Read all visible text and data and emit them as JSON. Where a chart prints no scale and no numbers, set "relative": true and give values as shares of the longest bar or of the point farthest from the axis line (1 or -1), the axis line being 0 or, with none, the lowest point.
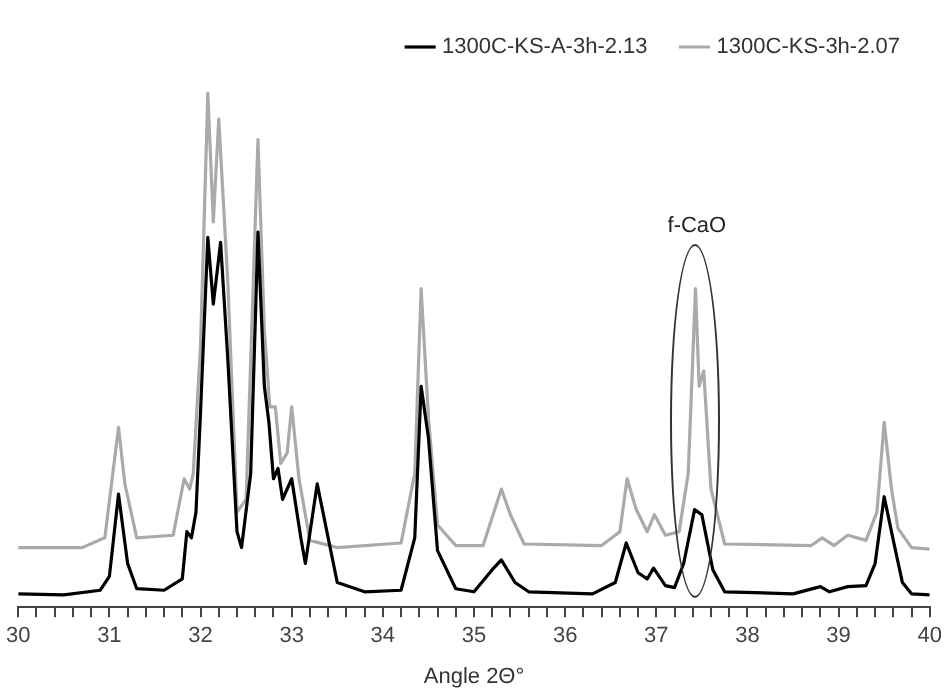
{
  "chart_data": {
    "type": "line",
    "relative": true,
    "xlabel": "Angle 2Θ°",
    "legend": "top",
    "grid": false,
    "marker": "none",
    "line_style": "solid",
    "xlim": [
      30,
      40
    ],
    "xticks": [
      30,
      {
        "value": 30.2,
        "label": null
      },
      {
        "value": 30.4,
        "label": null
      },
      {
        "value": 30.6,
        "label": null
      },
      {
        "value": 30.8,
        "label": null
      },
      31,
      {
        "value": 31.2,
        "label": null
      },
      {
        "value": 31.4,
        "label": null
      },
      {
        "value": 31.6,
        "label": null
      },
      {
        "value": 31.8,
        "label": null
      },
      32,
      {
        "value": 32.2,
        "label": null
      },
      {
        "value": 32.4,
        "label": null
      },
      {
        "value": 32.6,
        "label": null
      },
      {
        "value": 32.8,
        "label": null
      },
      33,
      {
        "value": 33.2,
        "label": null
      },
      {
        "value": 33.4,
        "label": null
      },
      {
        "value": 33.6,
        "label": null
      },
      {
        "value": 33.8,
        "label": null
      },
      34,
      {
        "value": 34.2,
        "label": null
      },
      {
        "value": 34.4,
        "label": null
      },
      {
        "value": 34.6,
        "label": null
      },
      {
        "value": 34.8,
        "label": null
      },
      35,
      {
        "value": 35.2,
        "label": null
      },
      {
        "value": 35.4,
        "label": null
      },
      {
        "value": 35.6,
        "label": null
      },
      {
        "value": 35.8,
        "label": null
      },
      36,
      {
        "value": 36.2,
        "label": null
      },
      {
        "value": 36.4,
        "label": null
      },
      {
        "value": 36.6,
        "label": null
      },
      {
        "value": 36.8,
        "label": null
      },
      37,
      {
        "value": 37.2,
        "label": null
      },
      {
        "value": 37.4,
        "label": null
      },
      {
        "value": 37.6,
        "label": null
      },
      {
        "value": 37.8,
        "label": null
      },
      38,
      {
        "value": 38.2,
        "label": null
      },
      {
        "value": 38.4,
        "label": null
      },
      {
        "value": 38.6,
        "label": null
      },
      {
        "value": 38.8,
        "label": null
      },
      39,
      {
        "value": 39.2,
        "label": null
      },
      {
        "value": 39.4,
        "label": null
      },
      {
        "value": 39.6,
        "label": null
      },
      {
        "value": 39.8,
        "label": null
      },
      40
    ],
    "annotations": [
      "f-CaO"
    ],
    "series": [
      {
        "name": "1300C-KS-A-3h-2.13",
        "color": "#000000",
        "x": [
          30,
          30.5,
          30.9,
          31,
          31.1,
          31.2,
          31.3,
          31.6,
          31.8,
          31.85,
          31.9,
          31.95,
          32,
          32.08,
          32.14,
          32.22,
          32.3,
          32.4,
          32.45,
          32.55,
          32.63,
          32.7,
          32.75,
          32.8,
          32.85,
          32.9,
          33,
          33.1,
          33.15,
          33.28,
          33.4,
          33.5,
          33.8,
          34.2,
          34.35,
          34.42,
          34.5,
          34.6,
          34.8,
          35,
          35.2,
          35.3,
          35.45,
          35.6,
          36.3,
          36.55,
          36.67,
          36.8,
          36.9,
          36.97,
          37.1,
          37.2,
          37.3,
          37.42,
          37.5,
          37.62,
          37.75,
          38.5,
          38.8,
          38.9,
          39.1,
          39.3,
          39.4,
          39.5,
          39.6,
          39.7,
          39.8,
          40
        ],
        "values": [
          0.026,
          0.024,
          0.033,
          0.06,
          0.22,
          0.085,
          0.036,
          0.033,
          0.055,
          0.147,
          0.135,
          0.185,
          0.38,
          0.72,
          0.59,
          0.71,
          0.48,
          0.147,
          0.116,
          0.26,
          0.73,
          0.43,
          0.36,
          0.25,
          0.27,
          0.21,
          0.25,
          0.135,
          0.085,
          0.24,
          0.135,
          0.048,
          0.03,
          0.033,
          0.135,
          0.43,
          0.33,
          0.11,
          0.036,
          0.03,
          0.073,
          0.092,
          0.048,
          0.03,
          0.026,
          0.048,
          0.125,
          0.067,
          0.055,
          0.076,
          0.042,
          0.038,
          0.085,
          0.19,
          0.18,
          0.073,
          0.03,
          0.026,
          0.04,
          0.03,
          0.04,
          0.042,
          0.085,
          0.215,
          0.13,
          0.048,
          0.026,
          0.024
        ]
      },
      {
        "name": "1300C-KS-3h-2.07",
        "color": "#aaaaaa",
        "x": [
          30,
          30.7,
          30.95,
          31.1,
          31.17,
          31.3,
          31.7,
          31.82,
          31.88,
          31.92,
          32,
          32.08,
          32.14,
          32.2,
          32.3,
          32.4,
          32.5,
          32.63,
          32.7,
          32.76,
          32.82,
          32.88,
          32.95,
          33,
          33.08,
          33.2,
          33.5,
          34.2,
          34.35,
          34.42,
          34.5,
          34.6,
          34.8,
          35.1,
          35.3,
          35.4,
          35.55,
          36.4,
          36.6,
          36.68,
          36.78,
          36.9,
          36.98,
          37.1,
          37.25,
          37.35,
          37.43,
          37.47,
          37.52,
          37.6,
          37.75,
          38.7,
          38.82,
          38.95,
          39.1,
          39.3,
          39.42,
          39.5,
          39.58,
          39.65,
          39.8,
          40
        ],
        "values": [
          0.116,
          0.116,
          0.135,
          0.35,
          0.24,
          0.135,
          0.14,
          0.25,
          0.23,
          0.26,
          0.51,
          1,
          0.75,
          0.95,
          0.63,
          0.185,
          0.21,
          0.91,
          0.54,
          0.39,
          0.39,
          0.28,
          0.3,
          0.39,
          0.25,
          0.13,
          0.116,
          0.125,
          0.26,
          0.62,
          0.37,
          0.16,
          0.12,
          0.12,
          0.23,
          0.18,
          0.123,
          0.12,
          0.147,
          0.25,
          0.19,
          0.147,
          0.18,
          0.14,
          0.147,
          0.26,
          0.62,
          0.43,
          0.46,
          0.23,
          0.123,
          0.12,
          0.135,
          0.12,
          0.14,
          0.13,
          0.185,
          0.36,
          0.23,
          0.154,
          0.116,
          0.113
        ]
      }
    ]
  }
}
